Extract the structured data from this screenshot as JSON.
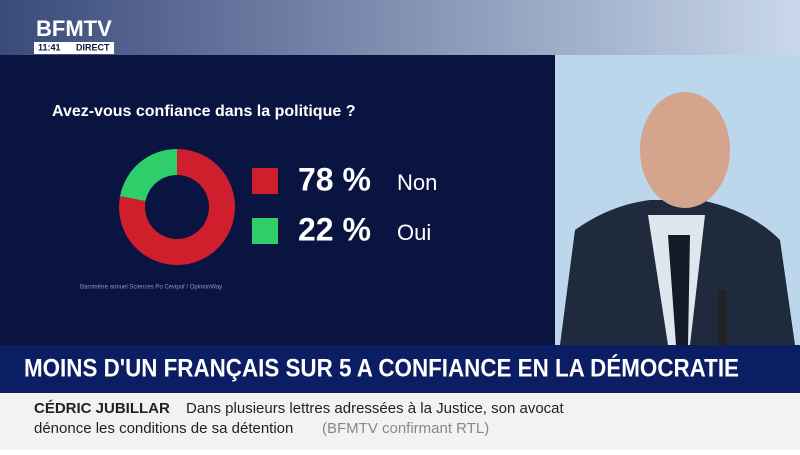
{
  "channel": {
    "logo": "BFMTV",
    "clock": "11:41",
    "live": "DIRECT"
  },
  "chart_data": {
    "type": "pie",
    "title": "Avez-vous confiance dans la politique ?",
    "categories": [
      "Non",
      "Oui"
    ],
    "values": [
      78,
      22
    ],
    "value_labels": [
      "78 %",
      "22 %"
    ],
    "colors": [
      "#d01f2c",
      "#2ecf6a"
    ],
    "donut": true,
    "source": "Baromètre annuel Sciences Po Cevipof / OpinionWay"
  },
  "headline": "MOINS D'UN FRANÇAIS SUR 5 A CONFIANCE EN LA DÉMOCRATIE",
  "ticker": {
    "name": "CÉDRIC JUBILLAR",
    "line1": "Dans plusieurs lettres adressées à la Justice, son avocat",
    "line2": "dénonce les conditions de sa détention",
    "credit": "(BFMTV confirmant RTL)"
  }
}
